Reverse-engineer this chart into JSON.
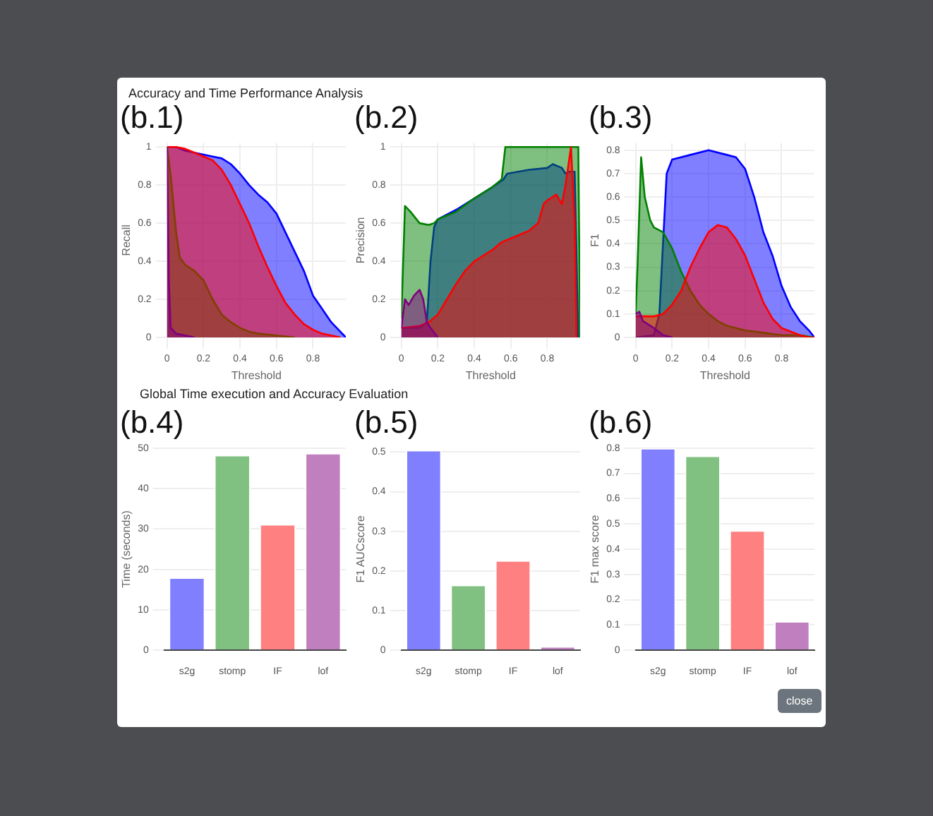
{
  "chart_data": [
    {
      "type": "area",
      "title": "(b.1)",
      "xlabel": "Threshold",
      "ylabel": "Recall",
      "annotations": [
        "Accuracy and Time Performance Analysis"
      ],
      "xlim": [
        0,
        0.98
      ],
      "xticks": [
        0,
        0.2,
        0.4,
        0.6,
        0.8
      ],
      "ylim": [
        0,
        1.02
      ],
      "yticks": [
        0,
        0.2,
        0.4,
        0.6,
        0.8,
        1
      ],
      "grid": true,
      "marker": "none",
      "series": [
        {
          "color": "#0000ff",
          "x": [
            0,
            0.05,
            0.1,
            0.15,
            0.2,
            0.25,
            0.3,
            0.35,
            0.4,
            0.45,
            0.5,
            0.55,
            0.6,
            0.65,
            0.7,
            0.75,
            0.8,
            0.85,
            0.9,
            0.95,
            0.98
          ],
          "values": [
            1,
            1,
            0.98,
            0.97,
            0.96,
            0.95,
            0.94,
            0.91,
            0.86,
            0.8,
            0.75,
            0.71,
            0.65,
            0.55,
            0.45,
            0.35,
            0.22,
            0.15,
            0.08,
            0.03,
            0
          ]
        },
        {
          "color": "#008000",
          "x": [
            0,
            0.02,
            0.05,
            0.07,
            0.1,
            0.15,
            0.2,
            0.25,
            0.3,
            0.35,
            0.4,
            0.45,
            0.5,
            0.6,
            0.7
          ],
          "values": [
            1,
            0.85,
            0.55,
            0.42,
            0.38,
            0.35,
            0.3,
            0.2,
            0.12,
            0.08,
            0.05,
            0.03,
            0.02,
            0.01,
            0
          ]
        },
        {
          "color": "#ff0000",
          "x": [
            0,
            0.05,
            0.1,
            0.15,
            0.2,
            0.25,
            0.3,
            0.35,
            0.4,
            0.45,
            0.5,
            0.55,
            0.6,
            0.65,
            0.7,
            0.75,
            0.8,
            0.85,
            0.9,
            0.95
          ],
          "values": [
            1,
            1,
            0.99,
            0.97,
            0.95,
            0.93,
            0.88,
            0.8,
            0.7,
            0.6,
            0.48,
            0.37,
            0.27,
            0.18,
            0.12,
            0.07,
            0.04,
            0.02,
            0.01,
            0
          ]
        },
        {
          "color": "#800080",
          "x": [
            0,
            0.01,
            0.02,
            0.05,
            0.1,
            0.15
          ],
          "values": [
            1,
            0.3,
            0.05,
            0.02,
            0.01,
            0
          ]
        }
      ]
    },
    {
      "type": "area",
      "title": "(b.2)",
      "xlabel": "Threshold",
      "ylabel": "Precision",
      "xlim": [
        0,
        0.98
      ],
      "xticks": [
        0,
        0.2,
        0.4,
        0.6,
        0.8
      ],
      "ylim": [
        0,
        1.02
      ],
      "yticks": [
        0,
        0.2,
        0.4,
        0.6,
        0.8,
        1
      ],
      "grid": true,
      "marker": "none",
      "series": [
        {
          "color": "#0000ff",
          "x": [
            0,
            0.1,
            0.14,
            0.16,
            0.18,
            0.2,
            0.3,
            0.4,
            0.5,
            0.56,
            0.58,
            0.7,
            0.8,
            0.83,
            0.88,
            0.9,
            0.92,
            0.95,
            0.97
          ],
          "values": [
            0.05,
            0.05,
            0.08,
            0.4,
            0.58,
            0.62,
            0.67,
            0.73,
            0.79,
            0.83,
            0.86,
            0.88,
            0.89,
            0.91,
            0.89,
            0.86,
            0.87,
            0.87,
            0
          ]
        },
        {
          "color": "#008000",
          "x": [
            0,
            0.02,
            0.05,
            0.1,
            0.15,
            0.18,
            0.2,
            0.3,
            0.4,
            0.5,
            0.55,
            0.57,
            0.97,
            0.98
          ],
          "values": [
            0.1,
            0.69,
            0.66,
            0.6,
            0.59,
            0.6,
            0.62,
            0.66,
            0.73,
            0.79,
            0.83,
            1,
            1,
            0
          ]
        },
        {
          "color": "#ff0000",
          "x": [
            0,
            0.1,
            0.15,
            0.2,
            0.25,
            0.3,
            0.35,
            0.4,
            0.45,
            0.5,
            0.55,
            0.6,
            0.7,
            0.75,
            0.78,
            0.8,
            0.85,
            0.88,
            0.9,
            0.93,
            0.95,
            0.96
          ],
          "values": [
            0.05,
            0.06,
            0.08,
            0.12,
            0.2,
            0.28,
            0.35,
            0.4,
            0.43,
            0.46,
            0.5,
            0.52,
            0.56,
            0.6,
            0.7,
            0.72,
            0.75,
            0.7,
            0.8,
            1,
            0.6,
            0
          ]
        },
        {
          "color": "#800080",
          "x": [
            0,
            0.02,
            0.04,
            0.07,
            0.1,
            0.12,
            0.14,
            0.16,
            0.2
          ],
          "values": [
            0.05,
            0.2,
            0.17,
            0.22,
            0.25,
            0.2,
            0.08,
            0.05,
            0
          ]
        }
      ]
    },
    {
      "type": "area",
      "title": "(b.3)",
      "xlabel": "Threshold",
      "ylabel": "F1",
      "xlim": [
        0,
        0.98
      ],
      "xticks": [
        0,
        0.2,
        0.4,
        0.6,
        0.8
      ],
      "ylim": [
        0,
        0.83
      ],
      "yticks": [
        0,
        0.1,
        0.2,
        0.3,
        0.4,
        0.5,
        0.6,
        0.7,
        0.8
      ],
      "grid": true,
      "marker": "none",
      "series": [
        {
          "color": "#0000ff",
          "x": [
            0,
            0.1,
            0.13,
            0.15,
            0.17,
            0.2,
            0.3,
            0.4,
            0.5,
            0.55,
            0.6,
            0.65,
            0.7,
            0.75,
            0.8,
            0.85,
            0.9,
            0.95,
            0.98
          ],
          "values": [
            0,
            0.01,
            0.1,
            0.4,
            0.7,
            0.76,
            0.78,
            0.8,
            0.78,
            0.77,
            0.72,
            0.6,
            0.45,
            0.35,
            0.22,
            0.13,
            0.07,
            0.03,
            0
          ]
        },
        {
          "color": "#008000",
          "x": [
            0,
            0.01,
            0.03,
            0.05,
            0.08,
            0.1,
            0.15,
            0.2,
            0.25,
            0.3,
            0.35,
            0.4,
            0.45,
            0.5,
            0.6,
            0.7,
            0.8,
            0.9,
            0.98
          ],
          "values": [
            0.1,
            0.3,
            0.77,
            0.6,
            0.5,
            0.47,
            0.45,
            0.38,
            0.28,
            0.2,
            0.14,
            0.1,
            0.07,
            0.05,
            0.03,
            0.02,
            0.01,
            0.01,
            0
          ]
        },
        {
          "color": "#ff0000",
          "x": [
            0,
            0.1,
            0.15,
            0.2,
            0.25,
            0.3,
            0.35,
            0.4,
            0.45,
            0.5,
            0.55,
            0.6,
            0.65,
            0.7,
            0.75,
            0.8,
            0.9,
            0.95,
            0.98
          ],
          "values": [
            0.09,
            0.09,
            0.1,
            0.14,
            0.2,
            0.3,
            0.38,
            0.45,
            0.48,
            0.47,
            0.42,
            0.35,
            0.25,
            0.15,
            0.08,
            0.04,
            0.01,
            0,
            0
          ]
        },
        {
          "color": "#800080",
          "x": [
            0,
            0.02,
            0.04,
            0.08,
            0.1,
            0.15,
            0.2
          ],
          "values": [
            0.1,
            0.11,
            0.07,
            0.05,
            0.04,
            0.01,
            0
          ]
        }
      ]
    },
    {
      "type": "bar",
      "title": "(b.4)",
      "ylabel": "Time (seconds)",
      "annotations": [
        "Global Time execution and Accuracy Evaluation"
      ],
      "categories": [
        "s2g",
        "stomp",
        "IF",
        "lof"
      ],
      "values": [
        18,
        48.3,
        31.2,
        48.8
      ],
      "colors": [
        "#8080ff",
        "#80c080",
        "#ff8080",
        "#c080c0"
      ],
      "ylim": [
        0,
        50
      ],
      "yticks": [
        0,
        10,
        20,
        30,
        40,
        50
      ],
      "grid": "y"
    },
    {
      "type": "bar",
      "title": "(b.5)",
      "ylabel": "F1 AUCscore",
      "categories": [
        "s2g",
        "stomp",
        "IF",
        "lof"
      ],
      "values": [
        0.505,
        0.165,
        0.227,
        0.01
      ],
      "colors": [
        "#8080ff",
        "#80c080",
        "#ff8080",
        "#c080c0"
      ],
      "ylim": [
        0,
        0.51
      ],
      "yticks": [
        0,
        0.1,
        0.2,
        0.3,
        0.4,
        0.5
      ],
      "grid": "y"
    },
    {
      "type": "bar",
      "title": "(b.6)",
      "ylabel": "F1 max score",
      "annotations": [
        "close"
      ],
      "categories": [
        "s2g",
        "stomp",
        "IF",
        "lof"
      ],
      "values": [
        0.8,
        0.77,
        0.475,
        0.115
      ],
      "colors": [
        "#8080ff",
        "#80c080",
        "#ff8080",
        "#c080c0"
      ],
      "ylim": [
        0,
        0.8
      ],
      "yticks": [
        0,
        0.1,
        0.2,
        0.3,
        0.4,
        0.5,
        0.6,
        0.7,
        0.8
      ],
      "grid": "y"
    }
  ]
}
